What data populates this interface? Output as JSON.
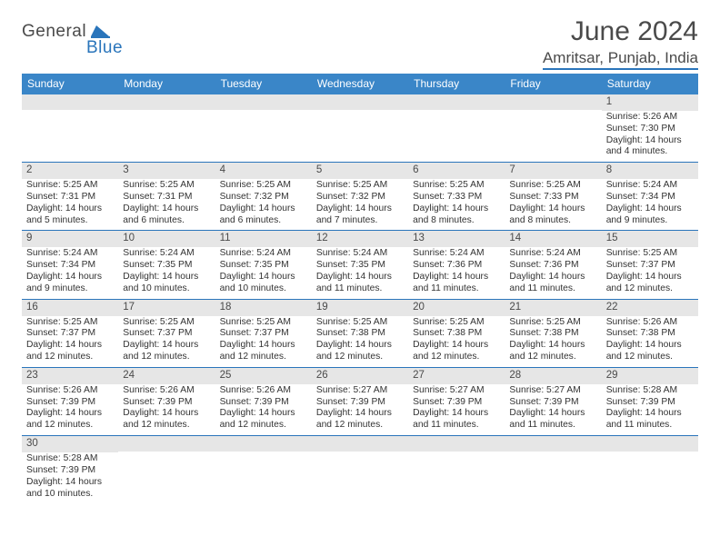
{
  "logo": {
    "general": "General",
    "blue": "Blue"
  },
  "title": "June 2024",
  "location": "Amritsar, Punjab, India",
  "header_color": "#3a86c8",
  "border_color": "#2a75bb",
  "weekdays": [
    "Sunday",
    "Monday",
    "Tuesday",
    "Wednesday",
    "Thursday",
    "Friday",
    "Saturday"
  ],
  "weeks": [
    [
      {
        "n": "",
        "lines": []
      },
      {
        "n": "",
        "lines": []
      },
      {
        "n": "",
        "lines": []
      },
      {
        "n": "",
        "lines": []
      },
      {
        "n": "",
        "lines": []
      },
      {
        "n": "",
        "lines": []
      },
      {
        "n": "1",
        "lines": [
          "Sunrise: 5:26 AM",
          "Sunset: 7:30 PM",
          "Daylight: 14 hours",
          "and 4 minutes."
        ]
      }
    ],
    [
      {
        "n": "2",
        "lines": [
          "Sunrise: 5:25 AM",
          "Sunset: 7:31 PM",
          "Daylight: 14 hours",
          "and 5 minutes."
        ]
      },
      {
        "n": "3",
        "lines": [
          "Sunrise: 5:25 AM",
          "Sunset: 7:31 PM",
          "Daylight: 14 hours",
          "and 6 minutes."
        ]
      },
      {
        "n": "4",
        "lines": [
          "Sunrise: 5:25 AM",
          "Sunset: 7:32 PM",
          "Daylight: 14 hours",
          "and 6 minutes."
        ]
      },
      {
        "n": "5",
        "lines": [
          "Sunrise: 5:25 AM",
          "Sunset: 7:32 PM",
          "Daylight: 14 hours",
          "and 7 minutes."
        ]
      },
      {
        "n": "6",
        "lines": [
          "Sunrise: 5:25 AM",
          "Sunset: 7:33 PM",
          "Daylight: 14 hours",
          "and 8 minutes."
        ]
      },
      {
        "n": "7",
        "lines": [
          "Sunrise: 5:25 AM",
          "Sunset: 7:33 PM",
          "Daylight: 14 hours",
          "and 8 minutes."
        ]
      },
      {
        "n": "8",
        "lines": [
          "Sunrise: 5:24 AM",
          "Sunset: 7:34 PM",
          "Daylight: 14 hours",
          "and 9 minutes."
        ]
      }
    ],
    [
      {
        "n": "9",
        "lines": [
          "Sunrise: 5:24 AM",
          "Sunset: 7:34 PM",
          "Daylight: 14 hours",
          "and 9 minutes."
        ]
      },
      {
        "n": "10",
        "lines": [
          "Sunrise: 5:24 AM",
          "Sunset: 7:35 PM",
          "Daylight: 14 hours",
          "and 10 minutes."
        ]
      },
      {
        "n": "11",
        "lines": [
          "Sunrise: 5:24 AM",
          "Sunset: 7:35 PM",
          "Daylight: 14 hours",
          "and 10 minutes."
        ]
      },
      {
        "n": "12",
        "lines": [
          "Sunrise: 5:24 AM",
          "Sunset: 7:35 PM",
          "Daylight: 14 hours",
          "and 11 minutes."
        ]
      },
      {
        "n": "13",
        "lines": [
          "Sunrise: 5:24 AM",
          "Sunset: 7:36 PM",
          "Daylight: 14 hours",
          "and 11 minutes."
        ]
      },
      {
        "n": "14",
        "lines": [
          "Sunrise: 5:24 AM",
          "Sunset: 7:36 PM",
          "Daylight: 14 hours",
          "and 11 minutes."
        ]
      },
      {
        "n": "15",
        "lines": [
          "Sunrise: 5:25 AM",
          "Sunset: 7:37 PM",
          "Daylight: 14 hours",
          "and 12 minutes."
        ]
      }
    ],
    [
      {
        "n": "16",
        "lines": [
          "Sunrise: 5:25 AM",
          "Sunset: 7:37 PM",
          "Daylight: 14 hours",
          "and 12 minutes."
        ]
      },
      {
        "n": "17",
        "lines": [
          "Sunrise: 5:25 AM",
          "Sunset: 7:37 PM",
          "Daylight: 14 hours",
          "and 12 minutes."
        ]
      },
      {
        "n": "18",
        "lines": [
          "Sunrise: 5:25 AM",
          "Sunset: 7:37 PM",
          "Daylight: 14 hours",
          "and 12 minutes."
        ]
      },
      {
        "n": "19",
        "lines": [
          "Sunrise: 5:25 AM",
          "Sunset: 7:38 PM",
          "Daylight: 14 hours",
          "and 12 minutes."
        ]
      },
      {
        "n": "20",
        "lines": [
          "Sunrise: 5:25 AM",
          "Sunset: 7:38 PM",
          "Daylight: 14 hours",
          "and 12 minutes."
        ]
      },
      {
        "n": "21",
        "lines": [
          "Sunrise: 5:25 AM",
          "Sunset: 7:38 PM",
          "Daylight: 14 hours",
          "and 12 minutes."
        ]
      },
      {
        "n": "22",
        "lines": [
          "Sunrise: 5:26 AM",
          "Sunset: 7:38 PM",
          "Daylight: 14 hours",
          "and 12 minutes."
        ]
      }
    ],
    [
      {
        "n": "23",
        "lines": [
          "Sunrise: 5:26 AM",
          "Sunset: 7:39 PM",
          "Daylight: 14 hours",
          "and 12 minutes."
        ]
      },
      {
        "n": "24",
        "lines": [
          "Sunrise: 5:26 AM",
          "Sunset: 7:39 PM",
          "Daylight: 14 hours",
          "and 12 minutes."
        ]
      },
      {
        "n": "25",
        "lines": [
          "Sunrise: 5:26 AM",
          "Sunset: 7:39 PM",
          "Daylight: 14 hours",
          "and 12 minutes."
        ]
      },
      {
        "n": "26",
        "lines": [
          "Sunrise: 5:27 AM",
          "Sunset: 7:39 PM",
          "Daylight: 14 hours",
          "and 12 minutes."
        ]
      },
      {
        "n": "27",
        "lines": [
          "Sunrise: 5:27 AM",
          "Sunset: 7:39 PM",
          "Daylight: 14 hours",
          "and 11 minutes."
        ]
      },
      {
        "n": "28",
        "lines": [
          "Sunrise: 5:27 AM",
          "Sunset: 7:39 PM",
          "Daylight: 14 hours",
          "and 11 minutes."
        ]
      },
      {
        "n": "29",
        "lines": [
          "Sunrise: 5:28 AM",
          "Sunset: 7:39 PM",
          "Daylight: 14 hours",
          "and 11 minutes."
        ]
      }
    ],
    [
      {
        "n": "30",
        "lines": [
          "Sunrise: 5:28 AM",
          "Sunset: 7:39 PM",
          "Daylight: 14 hours",
          "and 10 minutes."
        ]
      },
      {
        "n": "",
        "lines": []
      },
      {
        "n": "",
        "lines": []
      },
      {
        "n": "",
        "lines": []
      },
      {
        "n": "",
        "lines": []
      },
      {
        "n": "",
        "lines": []
      },
      {
        "n": "",
        "lines": []
      }
    ]
  ]
}
